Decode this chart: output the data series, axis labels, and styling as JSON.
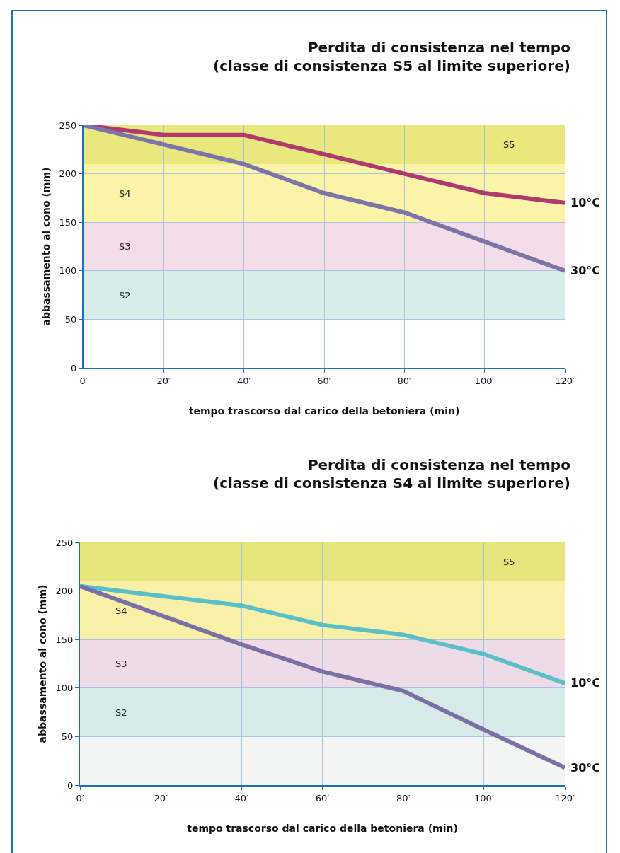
{
  "chart_data": [
    {
      "type": "line",
      "title": "Perdita di consistenza nel tempo\n(classe di consistenza S5 al limite superiore)",
      "xlabel": "tempo trascorso dal carico della betoniera (min)",
      "ylabel": "abbassamento al cono (mm)",
      "x": [
        0,
        20,
        40,
        60,
        80,
        100,
        120
      ],
      "series": [
        {
          "name": "10°C",
          "color": "#b03a6e",
          "values": [
            250,
            240,
            240,
            220,
            200,
            180,
            170
          ]
        },
        {
          "name": "30°C",
          "color": "#7b75a8",
          "values": [
            250,
            230,
            210,
            180,
            160,
            130,
            100
          ]
        }
      ],
      "xlim": [
        0,
        120
      ],
      "ylim": [
        0,
        250
      ],
      "xticks": [
        {
          "value": 0,
          "label": "0′"
        },
        {
          "value": 20,
          "label": "20′"
        },
        {
          "value": 40,
          "label": "40′"
        },
        {
          "value": 60,
          "label": "60′"
        },
        {
          "value": 80,
          "label": "80′"
        },
        {
          "value": 100,
          "label": "100′"
        },
        {
          "value": 120,
          "label": "120′"
        }
      ],
      "yticks": [
        0,
        50,
        100,
        150,
        200,
        250
      ],
      "bands": [
        {
          "axis": "y",
          "from": 50,
          "to": 100,
          "label": "S2",
          "color": "#d8ecea"
        },
        {
          "axis": "y",
          "from": 100,
          "to": 150,
          "label": "S3",
          "color": "#f2dde9"
        },
        {
          "axis": "y",
          "from": 150,
          "to": 210,
          "label": "S4",
          "color": "#faf3a8"
        },
        {
          "axis": "y",
          "from": 210,
          "to": 250,
          "label": "S5",
          "color": "#e8e87c"
        }
      ],
      "grid": true,
      "legend": false,
      "marker": "none",
      "line_style": "solid"
    },
    {
      "type": "line",
      "title": "Perdita di consistenza nel tempo\n(classe di consistenza S4 al limite superiore)",
      "xlabel": "tempo trascorso dal carico della betoniera (min)",
      "ylabel": "abbassamento al cono (mm)",
      "x": [
        0,
        20,
        40,
        60,
        80,
        100,
        120
      ],
      "series": [
        {
          "name": "10°C",
          "color": "#5bbfc8",
          "values": [
            205,
            195,
            185,
            165,
            155,
            135,
            105
          ]
        },
        {
          "name": "30°C",
          "color": "#7b70a5",
          "values": [
            205,
            175,
            145,
            117,
            97,
            57,
            18
          ]
        }
      ],
      "xlim": [
        0,
        120
      ],
      "ylim": [
        0,
        250
      ],
      "xticks": [
        {
          "value": 0,
          "label": "0′"
        },
        {
          "value": 20,
          "label": "20′"
        },
        {
          "value": 40,
          "label": "40′"
        },
        {
          "value": 60,
          "label": "60′"
        },
        {
          "value": 80,
          "label": "80′"
        },
        {
          "value": 100,
          "label": "100′"
        },
        {
          "value": 120,
          "label": "120′"
        }
      ],
      "yticks": [
        0,
        50,
        100,
        150,
        200,
        250
      ],
      "bands": [
        {
          "axis": "y",
          "from": 0,
          "to": 50,
          "color": "#f3f5f4"
        },
        {
          "axis": "y",
          "from": 50,
          "to": 100,
          "label": "S2",
          "color": "#d6ebe9"
        },
        {
          "axis": "y",
          "from": 100,
          "to": 150,
          "label": "S3",
          "color": "#eedbe8"
        },
        {
          "axis": "y",
          "from": 150,
          "to": 210,
          "label": "S4",
          "color": "#f7f0a6"
        },
        {
          "axis": "y",
          "from": 210,
          "to": 250,
          "label": "S5",
          "color": "#e4e67c"
        }
      ],
      "grid": true,
      "legend": false,
      "marker": "none",
      "line_style": "solid"
    }
  ]
}
